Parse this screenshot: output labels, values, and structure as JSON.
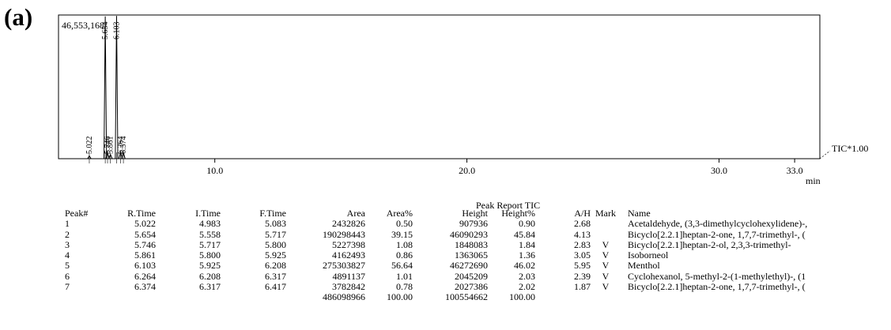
{
  "panel_label": "(a)",
  "chart_data": {
    "type": "line",
    "title": "",
    "xlabel": "min",
    "ylabel": "",
    "xlim": [
      3.8,
      34.0
    ],
    "ylim": [
      0,
      46553168
    ],
    "x_ticks": [
      10.0,
      20.0,
      30.0,
      33.0
    ],
    "x_tick_labels": [
      "10.0",
      "20.0",
      "30.0",
      "33.0"
    ],
    "max_intensity_label": "46,553,168",
    "trace_label": "TIC*1.00",
    "series": [
      {
        "name": "TIC",
        "peaks": [
          {
            "rt": 5.022,
            "height": 907936
          },
          {
            "rt": 5.654,
            "height": 46090293
          },
          {
            "rt": 5.746,
            "height": 1848083
          },
          {
            "rt": 5.861,
            "height": 1363065
          },
          {
            "rt": 6.103,
            "height": 46272690
          },
          {
            "rt": 6.264,
            "height": 2045209
          },
          {
            "rt": 6.374,
            "height": 2027386
          }
        ]
      }
    ],
    "peak_labels": [
      {
        "rt": 5.022,
        "text": "5.022"
      },
      {
        "rt": 5.654,
        "text": "5.654"
      },
      {
        "rt": 5.746,
        "text": "5.746"
      },
      {
        "rt": 5.861,
        "text": "5.861"
      },
      {
        "rt": 6.103,
        "text": "6.103"
      },
      {
        "rt": 6.264,
        "text": "6.264"
      },
      {
        "rt": 6.374,
        "text": "6.374"
      }
    ]
  },
  "report": {
    "title": "Peak Report TIC",
    "columns": [
      "Peak#",
      "R.Time",
      "I.Time",
      "F.Time",
      "Area",
      "Area%",
      "Height",
      "Height%",
      "A/H",
      "Mark",
      "Name"
    ],
    "rows": [
      [
        "1",
        "5.022",
        "4.983",
        "5.083",
        "2432826",
        "0.50",
        "907936",
        "0.90",
        "2.68",
        "",
        "Acetaldehyde, (3,3-dimethylcyclohexylidene)-,"
      ],
      [
        "2",
        "5.654",
        "5.558",
        "5.717",
        "190298443",
        "39.15",
        "46090293",
        "45.84",
        "4.13",
        "",
        "Bicyclo[2.2.1]heptan-2-one, 1,7,7-trimethyl-, ("
      ],
      [
        "3",
        "5.746",
        "5.717",
        "5.800",
        "5227398",
        "1.08",
        "1848083",
        "1.84",
        "2.83",
        "V",
        "Bicyclo[2.2.1]heptan-2-ol, 2,3,3-trimethyl-"
      ],
      [
        "4",
        "5.861",
        "5.800",
        "5.925",
        "4162493",
        "0.86",
        "1363065",
        "1.36",
        "3.05",
        "V",
        "Isoborneol"
      ],
      [
        "5",
        "6.103",
        "5.925",
        "6.208",
        "275303827",
        "56.64",
        "46272690",
        "46.02",
        "5.95",
        "V",
        "Menthol"
      ],
      [
        "6",
        "6.264",
        "6.208",
        "6.317",
        "4891137",
        "1.01",
        "2045209",
        "2.03",
        "2.39",
        "V",
        "Cyclohexanol, 5-methyl-2-(1-methylethyl)-, (1"
      ],
      [
        "7",
        "6.374",
        "6.317",
        "6.417",
        "3782842",
        "0.78",
        "2027386",
        "2.02",
        "1.87",
        "V",
        "Bicyclo[2.2.1]heptan-2-one, 1,7,7-trimethyl-, ("
      ]
    ],
    "totals": [
      "",
      "",
      "",
      "",
      "486098966",
      "100.00",
      "100554662",
      "100.00",
      "",
      "",
      ""
    ]
  }
}
